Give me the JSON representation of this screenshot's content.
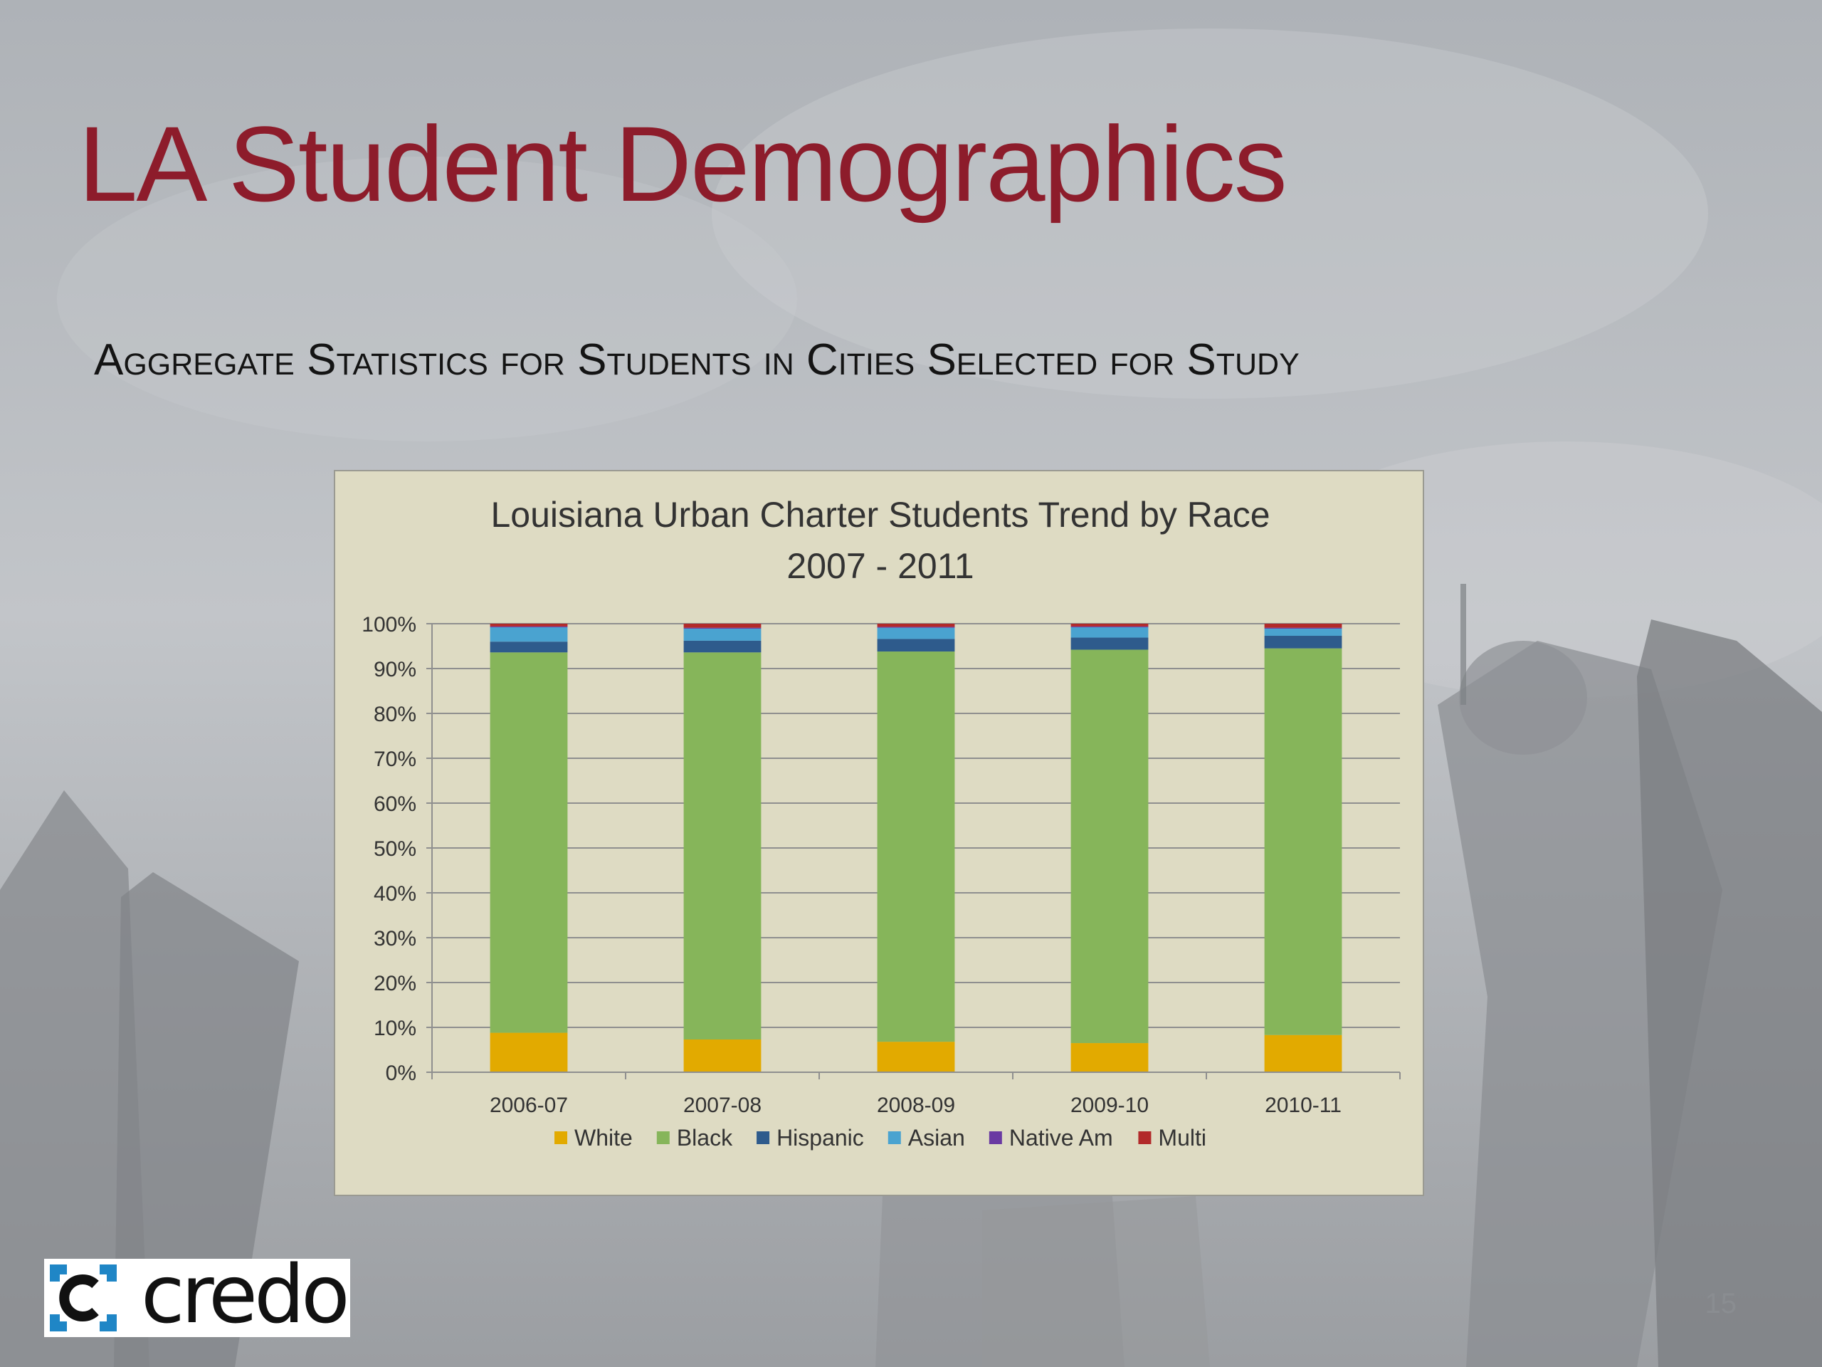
{
  "slide": {
    "title": "LA Student Demographics",
    "subtitle": "Aggregate Statistics for Students in Cities Selected for Study",
    "page_number": "15"
  },
  "logo": {
    "text": "credo"
  },
  "colors": {
    "title": "#8d1c2b",
    "chart_background": "#dedbc3"
  },
  "chart_data": {
    "type": "bar",
    "stacked": true,
    "percent": true,
    "title": "Louisiana Urban Charter Students Trend by Race",
    "subtitle": "2007 - 2011",
    "xlabel": "",
    "ylabel": "",
    "ylim": [
      0,
      100
    ],
    "yticks": [
      "0%",
      "10%",
      "20%",
      "30%",
      "40%",
      "50%",
      "60%",
      "70%",
      "80%",
      "90%",
      "100%"
    ],
    "grid": true,
    "legend": "bottom",
    "categories": [
      "2006-07",
      "2007-08",
      "2008-09",
      "2009-10",
      "2010-11"
    ],
    "series": [
      {
        "name": "White",
        "color": "#e2aa00",
        "values": [
          8.8,
          7.3,
          6.8,
          6.5,
          8.3
        ]
      },
      {
        "name": "Black",
        "color": "#86b55a",
        "values": [
          84.8,
          86.3,
          87.0,
          87.7,
          86.2
        ]
      },
      {
        "name": "Hispanic",
        "color": "#2e5b8c",
        "values": [
          2.4,
          2.6,
          2.8,
          2.7,
          2.8
        ]
      },
      {
        "name": "Asian",
        "color": "#4aa3d0",
        "values": [
          3.2,
          2.7,
          2.5,
          2.3,
          1.6
        ]
      },
      {
        "name": "Native Am",
        "color": "#6a3aa2",
        "values": [
          0.2,
          0.2,
          0.2,
          0.2,
          0.2
        ]
      },
      {
        "name": "Multi",
        "color": "#b22a2a",
        "values": [
          0.6,
          0.9,
          0.7,
          0.6,
          0.9
        ]
      }
    ]
  }
}
